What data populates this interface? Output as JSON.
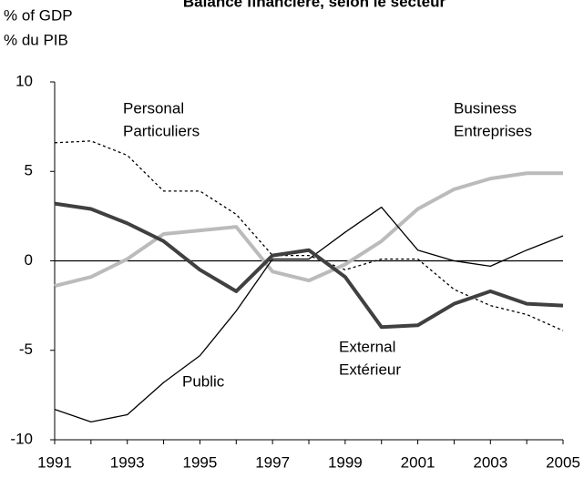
{
  "chart_data": {
    "type": "line",
    "title": "Balance financière, selon le secteur",
    "y_label": [
      "% of GDP",
      "% du PIB"
    ],
    "x": [
      1991,
      1992,
      1993,
      1994,
      1995,
      1996,
      1997,
      1998,
      1999,
      2000,
      2001,
      2002,
      2003,
      2004,
      2005
    ],
    "xlim": [
      1991,
      2005
    ],
    "xticks": [
      1991,
      1993,
      1995,
      1997,
      1999,
      2001,
      2003,
      2005
    ],
    "ylim": [
      -10,
      10
    ],
    "yticks": [
      -10,
      -5,
      0,
      5,
      10
    ],
    "series": [
      {
        "name": [
          "Personal",
          "Particuliers"
        ],
        "color": "#000000",
        "style": "dotted",
        "values": [
          6.6,
          6.7,
          5.9,
          3.9,
          3.9,
          2.6,
          0.3,
          0.3,
          -0.5,
          0.1,
          0.1,
          -1.6,
          -2.5,
          -3.0,
          -3.9
        ]
      },
      {
        "name": [
          "Business",
          "Entreprises"
        ],
        "color": "#bbbbbb",
        "style": "thick",
        "values": [
          -1.4,
          -0.9,
          0.1,
          1.5,
          1.7,
          1.9,
          -0.6,
          -1.1,
          -0.2,
          1.1,
          2.9,
          4.0,
          4.6,
          4.9,
          4.9
        ]
      },
      {
        "name": [
          "Public"
        ],
        "color": "#000000",
        "style": "thin",
        "values": [
          -8.3,
          -9.0,
          -8.6,
          -6.8,
          -5.3,
          -2.8,
          0.1,
          0.1,
          1.6,
          3.0,
          0.6,
          0.0,
          -0.3,
          0.6,
          1.4
        ]
      },
      {
        "name": [
          "External",
          "Extérieur"
        ],
        "color": "#404040",
        "style": "thick",
        "values": [
          3.2,
          2.9,
          2.1,
          1.1,
          -0.5,
          -1.7,
          0.3,
          0.6,
          -0.9,
          -3.7,
          -3.6,
          -2.4,
          -1.7,
          -2.4,
          -2.5
        ]
      }
    ]
  }
}
